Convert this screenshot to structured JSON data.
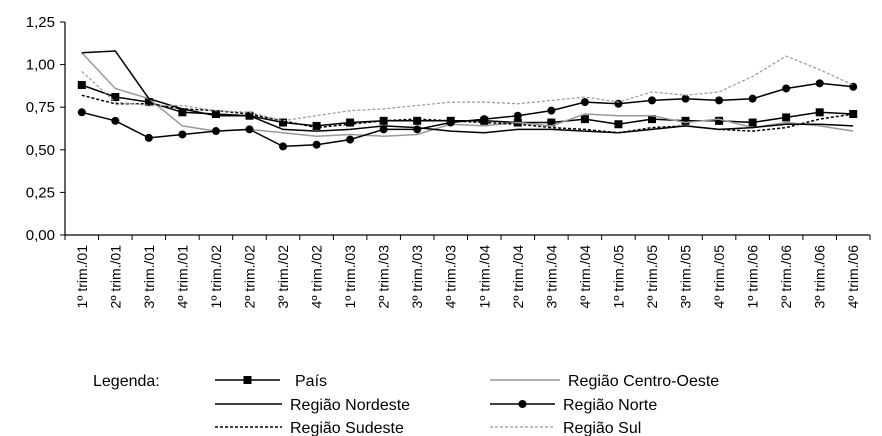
{
  "chart_data": {
    "type": "line",
    "title": "",
    "xlabel": "",
    "ylabel": "",
    "ylim": [
      0,
      1.25
    ],
    "yticks": [
      "0,00",
      "0,25",
      "0,50",
      "0,75",
      "1,00",
      "1,25"
    ],
    "ytick_values": [
      0,
      0.25,
      0.5,
      0.75,
      1.0,
      1.25
    ],
    "grid": false,
    "legend_position": "bottom",
    "legend_title": "Legenda:",
    "categories": [
      "1º trim./01",
      "2º trim./01",
      "3º trim./01",
      "4º trim./01",
      "1º trim./02",
      "2º trim./02",
      "3º trim./02",
      "4º trim./02",
      "1º trim./03",
      "2º trim./03",
      "3º trim./03",
      "4º trim./03",
      "1º trim./04",
      "2º trim./04",
      "3º trim./04",
      "4º trim./04",
      "1º trim./05",
      "2º trim./05",
      "3º trim./05",
      "4º trim./05",
      "1º trim./06",
      "2º trim./06",
      "3º trim./06",
      "4º trim./06"
    ],
    "series": [
      {
        "name": "País",
        "color": "#000000",
        "dash": "",
        "marker": "square",
        "width": 1.5,
        "values": [
          0.88,
          0.81,
          0.78,
          0.72,
          0.71,
          0.7,
          0.66,
          0.64,
          0.66,
          0.67,
          0.67,
          0.67,
          0.67,
          0.66,
          0.66,
          0.68,
          0.65,
          0.68,
          0.67,
          0.67,
          0.66,
          0.69,
          0.72,
          0.71
        ]
      },
      {
        "name": "Região Centro-Oeste",
        "color": "#999999",
        "dash": "",
        "marker": "none",
        "width": 1.5,
        "values": [
          1.07,
          0.86,
          0.8,
          0.64,
          0.61,
          0.62,
          0.6,
          0.58,
          0.59,
          0.58,
          0.59,
          0.65,
          0.64,
          0.66,
          0.64,
          0.71,
          0.7,
          0.7,
          0.66,
          0.68,
          0.63,
          0.66,
          0.64,
          0.61
        ]
      },
      {
        "name": "Região Nordeste",
        "color": "#000000",
        "dash": "",
        "marker": "none",
        "width": 1.5,
        "values": [
          1.07,
          1.08,
          0.8,
          0.74,
          0.7,
          0.7,
          0.62,
          0.61,
          0.62,
          0.64,
          0.63,
          0.61,
          0.6,
          0.62,
          0.62,
          0.61,
          0.6,
          0.62,
          0.64,
          0.62,
          0.63,
          0.65,
          0.65,
          0.64
        ]
      },
      {
        "name": "Região Norte",
        "color": "#000000",
        "dash": "",
        "marker": "circle",
        "width": 1.5,
        "values": [
          0.72,
          0.67,
          0.57,
          0.59,
          0.61,
          0.62,
          0.52,
          0.53,
          0.56,
          0.62,
          0.62,
          0.66,
          0.68,
          0.7,
          0.73,
          0.78,
          0.77,
          0.79,
          0.8,
          0.79,
          0.8,
          0.86,
          0.89,
          0.87
        ]
      },
      {
        "name": "Região Sudeste",
        "color": "#000000",
        "dash": "3,2",
        "marker": "none",
        "width": 1.5,
        "values": [
          0.82,
          0.77,
          0.77,
          0.74,
          0.73,
          0.71,
          0.67,
          0.63,
          0.65,
          0.67,
          0.68,
          0.67,
          0.66,
          0.65,
          0.63,
          0.62,
          0.6,
          0.63,
          0.64,
          0.62,
          0.61,
          0.63,
          0.68,
          0.71
        ]
      },
      {
        "name": "Região Sul",
        "color": "#999999",
        "dash": "3,2",
        "marker": "none",
        "width": 1.2,
        "values": [
          0.96,
          0.78,
          0.76,
          0.76,
          0.73,
          0.72,
          0.67,
          0.7,
          0.73,
          0.74,
          0.76,
          0.78,
          0.78,
          0.77,
          0.79,
          0.81,
          0.78,
          0.84,
          0.82,
          0.84,
          0.93,
          1.05,
          0.97,
          0.88
        ]
      }
    ]
  }
}
